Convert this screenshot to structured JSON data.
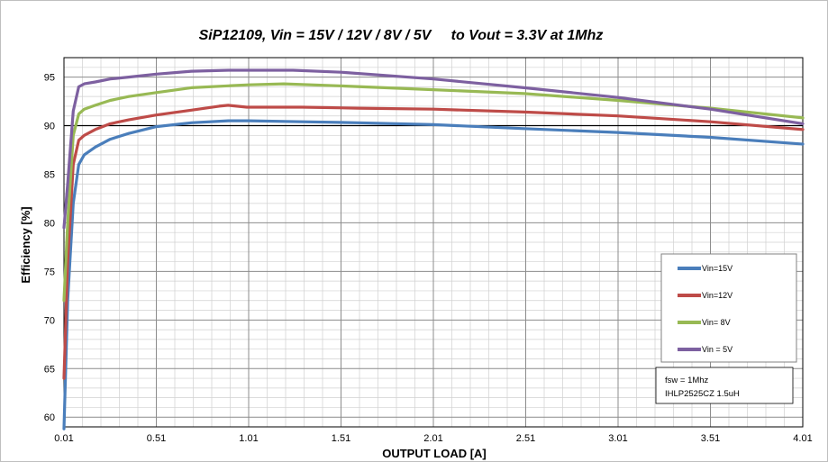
{
  "chart_data": {
    "type": "line",
    "title": "SiP12109, Vin = 15V / 12V / 8V / 5V     to Vout = 3.3V at 1Mhz",
    "xlabel": "OUTPUT LOAD [A]",
    "ylabel": "Efficiency [%]",
    "xlim": [
      0.01,
      4.01
    ],
    "ylim": [
      59,
      97
    ],
    "x_ticks": [
      "0.01",
      "0.51",
      "1.01",
      "1.51",
      "2.01",
      "2.51",
      "3.01",
      "3.51",
      "4.01"
    ],
    "y_ticks": [
      "60",
      "65",
      "70",
      "75",
      "80",
      "85",
      "90",
      "95"
    ],
    "grid": true,
    "legend_position": "bottom-right",
    "series": [
      {
        "name": "Vin=15V",
        "color": "#4a7ebb",
        "points": [
          [
            0.01,
            58.8
          ],
          [
            0.03,
            72
          ],
          [
            0.06,
            82
          ],
          [
            0.09,
            86
          ],
          [
            0.12,
            87
          ],
          [
            0.18,
            87.8
          ],
          [
            0.26,
            88.6
          ],
          [
            0.36,
            89.2
          ],
          [
            0.51,
            89.9
          ],
          [
            0.7,
            90.3
          ],
          [
            0.9,
            90.5
          ],
          [
            1.01,
            90.5
          ],
          [
            1.3,
            90.4
          ],
          [
            1.6,
            90.3
          ],
          [
            2.01,
            90.1
          ],
          [
            2.5,
            89.7
          ],
          [
            3.01,
            89.3
          ],
          [
            3.51,
            88.8
          ],
          [
            4.01,
            88.1
          ]
        ]
      },
      {
        "name": "Vin=12V",
        "color": "#be4b48",
        "points": [
          [
            0.01,
            64
          ],
          [
            0.03,
            76
          ],
          [
            0.06,
            86
          ],
          [
            0.09,
            88.5
          ],
          [
            0.12,
            89
          ],
          [
            0.18,
            89.6
          ],
          [
            0.26,
            90.2
          ],
          [
            0.36,
            90.6
          ],
          [
            0.51,
            91.1
          ],
          [
            0.7,
            91.6
          ],
          [
            0.85,
            92.0
          ],
          [
            0.9,
            92.1
          ],
          [
            1.0,
            91.9
          ],
          [
            1.3,
            91.9
          ],
          [
            1.6,
            91.8
          ],
          [
            2.01,
            91.7
          ],
          [
            2.5,
            91.4
          ],
          [
            3.01,
            91.0
          ],
          [
            3.51,
            90.4
          ],
          [
            4.01,
            89.6
          ]
        ]
      },
      {
        "name": "Vin= 8V",
        "color": "#98b954",
        "points": [
          [
            0.01,
            72
          ],
          [
            0.03,
            80
          ],
          [
            0.06,
            89
          ],
          [
            0.09,
            91.2
          ],
          [
            0.12,
            91.7
          ],
          [
            0.18,
            92.1
          ],
          [
            0.26,
            92.6
          ],
          [
            0.36,
            93.0
          ],
          [
            0.51,
            93.4
          ],
          [
            0.7,
            93.9
          ],
          [
            0.9,
            94.1
          ],
          [
            1.01,
            94.2
          ],
          [
            1.2,
            94.3
          ],
          [
            1.5,
            94.1
          ],
          [
            2.01,
            93.7
          ],
          [
            2.5,
            93.3
          ],
          [
            3.01,
            92.6
          ],
          [
            3.51,
            91.8
          ],
          [
            4.01,
            90.8
          ]
        ]
      },
      {
        "name": "Vin = 5V",
        "color": "#7d60a0",
        "points": [
          [
            0.01,
            79.5
          ],
          [
            0.03,
            84
          ],
          [
            0.06,
            91.5
          ],
          [
            0.09,
            94.0
          ],
          [
            0.12,
            94.3
          ],
          [
            0.18,
            94.5
          ],
          [
            0.26,
            94.8
          ],
          [
            0.36,
            95.0
          ],
          [
            0.51,
            95.3
          ],
          [
            0.7,
            95.6
          ],
          [
            0.9,
            95.7
          ],
          [
            1.01,
            95.7
          ],
          [
            1.25,
            95.7
          ],
          [
            1.51,
            95.5
          ],
          [
            2.01,
            94.8
          ],
          [
            2.5,
            93.9
          ],
          [
            3.01,
            92.9
          ],
          [
            3.51,
            91.7
          ],
          [
            4.01,
            90.2
          ]
        ]
      }
    ],
    "reference_line": {
      "y": 90,
      "color": "#000000"
    },
    "annotation": [
      "fsw = 1Mhz",
      "IHLP2525CZ 1.5uH"
    ]
  }
}
